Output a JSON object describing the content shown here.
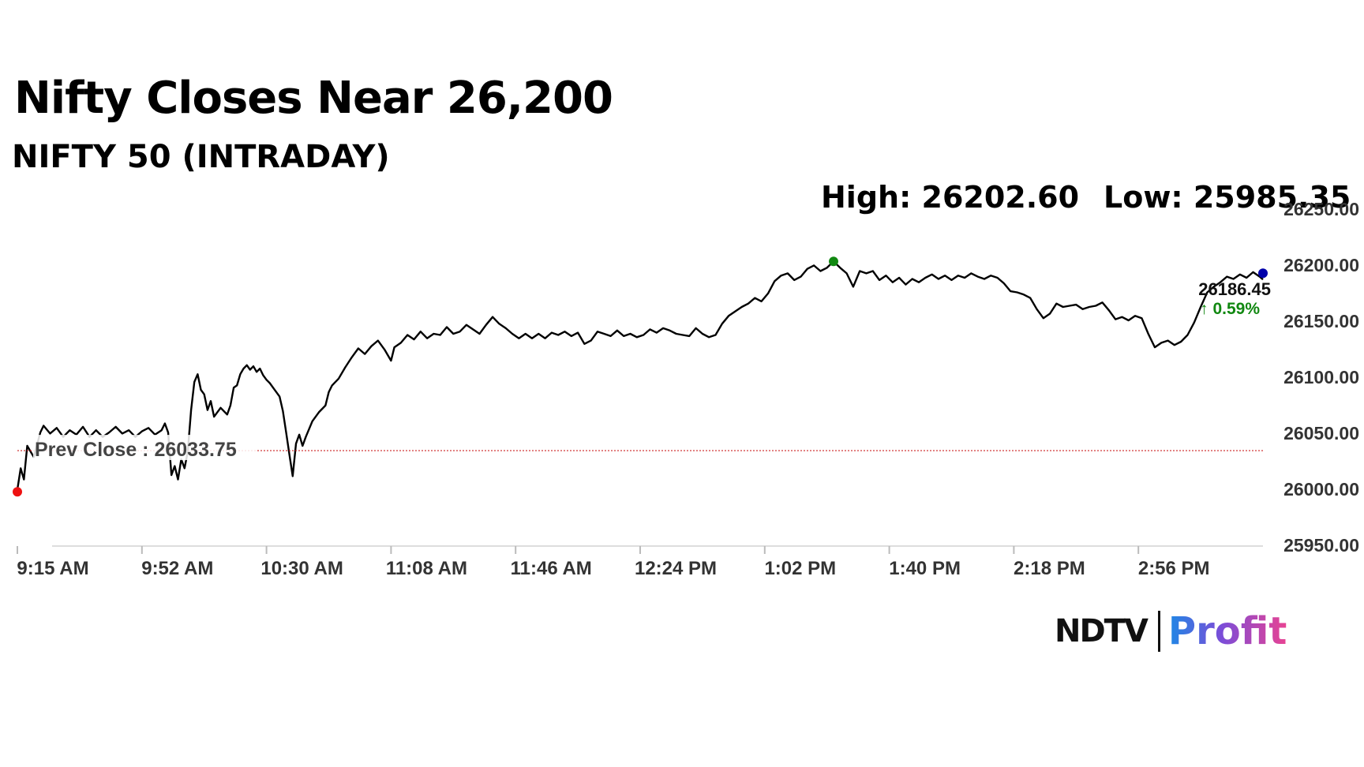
{
  "header": {
    "title": "Nifty Closes Near 26,200",
    "subtitle": "NIFTY 50 (INTRADAY)",
    "high_text": "High: 26202.60",
    "low_text": "Low: 25985.35"
  },
  "logo": {
    "brand": "NDTV",
    "product": "Profit"
  },
  "chart_data": {
    "type": "line",
    "ylim": [
      25950,
      26250
    ],
    "y_ticks": [
      "26250.00",
      "26200.00",
      "26150.00",
      "26100.00",
      "26050.00",
      "26000.00",
      "25950.00"
    ],
    "x_ticks": [
      "9:15 AM",
      "9:52 AM",
      "10:30 AM",
      "11:08 AM",
      "11:46 AM",
      "12:24 PM",
      "1:02 PM",
      "1:40 PM",
      "2:18 PM",
      "2:56 PM"
    ],
    "x_range_minutes": [
      0,
      380
    ],
    "prev_close": {
      "label": "Prev Close : 26033.75",
      "value": 26033.75,
      "color": "#cc2222"
    },
    "last": {
      "value_label": "26186.45",
      "change_label": "↑ 0.59%",
      "value": 26186.45,
      "change_color": "#118811",
      "marker_color": "#0000aa"
    },
    "open_marker": {
      "value": 25997,
      "color": "#ee1111"
    },
    "high_marker": {
      "value": 26202.6,
      "color": "#118811"
    },
    "series": [
      {
        "line_color": "#000000",
        "points": [
          [
            0,
            25999
          ],
          [
            1,
            26018
          ],
          [
            2,
            26008
          ],
          [
            3,
            26038
          ],
          [
            5,
            26028
          ],
          [
            7,
            26050
          ],
          [
            8,
            26056
          ],
          [
            10,
            26049
          ],
          [
            12,
            26054
          ],
          [
            14,
            26046
          ],
          [
            16,
            26052
          ],
          [
            18,
            26048
          ],
          [
            20,
            26055
          ],
          [
            22,
            26046
          ],
          [
            24,
            26052
          ],
          [
            26,
            26046
          ],
          [
            28,
            26050
          ],
          [
            30,
            26055
          ],
          [
            32,
            26049
          ],
          [
            34,
            26052
          ],
          [
            36,
            26046
          ],
          [
            38,
            26051
          ],
          [
            40,
            26054
          ],
          [
            42,
            26048
          ],
          [
            44,
            26052
          ],
          [
            45,
            26058
          ],
          [
            46,
            26050
          ],
          [
            47,
            26012
          ],
          [
            48,
            26020
          ],
          [
            49,
            26008
          ],
          [
            50,
            26026
          ],
          [
            51,
            26018
          ],
          [
            52,
            26033
          ],
          [
            53,
            26070
          ],
          [
            54,
            26095
          ],
          [
            55,
            26102
          ],
          [
            56,
            26088
          ],
          [
            57,
            26084
          ],
          [
            58,
            26070
          ],
          [
            59,
            26078
          ],
          [
            60,
            26064
          ],
          [
            62,
            26072
          ],
          [
            64,
            26066
          ],
          [
            65,
            26074
          ],
          [
            66,
            26090
          ],
          [
            67,
            26092
          ],
          [
            68,
            26102
          ],
          [
            69,
            26107
          ],
          [
            70,
            26110
          ],
          [
            71,
            26106
          ],
          [
            72,
            26109
          ],
          [
            73,
            26104
          ],
          [
            74,
            26107
          ],
          [
            75,
            26101
          ],
          [
            76,
            26097
          ],
          [
            77,
            26094
          ],
          [
            78,
            26090
          ],
          [
            79,
            26086
          ],
          [
            80,
            26082
          ],
          [
            81,
            26069
          ],
          [
            82,
            26050
          ],
          [
            83,
            26030
          ],
          [
            84,
            26011
          ],
          [
            85,
            26040
          ],
          [
            86,
            26048
          ],
          [
            87,
            26038
          ],
          [
            88,
            26046
          ],
          [
            90,
            26060
          ],
          [
            92,
            26068
          ],
          [
            94,
            26074
          ],
          [
            95,
            26086
          ],
          [
            96,
            26092
          ],
          [
            98,
            26098
          ],
          [
            100,
            26108
          ],
          [
            102,
            26117
          ],
          [
            104,
            26125
          ],
          [
            106,
            26120
          ],
          [
            108,
            26127
          ],
          [
            110,
            26132
          ],
          [
            112,
            26124
          ],
          [
            114,
            26114
          ],
          [
            115,
            26126
          ],
          [
            117,
            26130
          ],
          [
            119,
            26137
          ],
          [
            121,
            26133
          ],
          [
            123,
            26140
          ],
          [
            125,
            26134
          ],
          [
            127,
            26138
          ],
          [
            129,
            26137
          ],
          [
            131,
            26144
          ],
          [
            133,
            26138
          ],
          [
            135,
            26140
          ],
          [
            137,
            26146
          ],
          [
            139,
            26142
          ],
          [
            141,
            26138
          ],
          [
            143,
            26146
          ],
          [
            145,
            26153
          ],
          [
            147,
            26147
          ],
          [
            149,
            26143
          ],
          [
            151,
            26138
          ],
          [
            153,
            26134
          ],
          [
            155,
            26138
          ],
          [
            157,
            26134
          ],
          [
            159,
            26138
          ],
          [
            161,
            26134
          ],
          [
            163,
            26139
          ],
          [
            165,
            26137
          ],
          [
            167,
            26140
          ],
          [
            169,
            26136
          ],
          [
            171,
            26139
          ],
          [
            173,
            26129
          ],
          [
            175,
            26132
          ],
          [
            177,
            26140
          ],
          [
            179,
            26138
          ],
          [
            181,
            26136
          ],
          [
            183,
            26141
          ],
          [
            185,
            26136
          ],
          [
            187,
            26138
          ],
          [
            189,
            26135
          ],
          [
            191,
            26137
          ],
          [
            193,
            26142
          ],
          [
            195,
            26139
          ],
          [
            197,
            26143
          ],
          [
            199,
            26141
          ],
          [
            201,
            26138
          ],
          [
            203,
            26137
          ],
          [
            205,
            26136
          ],
          [
            207,
            26143
          ],
          [
            209,
            26138
          ],
          [
            211,
            26135
          ],
          [
            213,
            26137
          ],
          [
            215,
            26147
          ],
          [
            217,
            26154
          ],
          [
            219,
            26158
          ],
          [
            221,
            26162
          ],
          [
            223,
            26165
          ],
          [
            225,
            26170
          ],
          [
            227,
            26167
          ],
          [
            229,
            26174
          ],
          [
            231,
            26185
          ],
          [
            233,
            26190
          ],
          [
            235,
            26192
          ],
          [
            237,
            26186
          ],
          [
            239,
            26189
          ],
          [
            241,
            26196
          ],
          [
            243,
            26199
          ],
          [
            245,
            26194
          ],
          [
            247,
            26197
          ],
          [
            249,
            26202.6
          ],
          [
            251,
            26197
          ],
          [
            253,
            26192
          ],
          [
            255,
            26180
          ],
          [
            257,
            26194
          ],
          [
            259,
            26192
          ],
          [
            261,
            26194
          ],
          [
            263,
            26186
          ],
          [
            265,
            26190
          ],
          [
            267,
            26184
          ],
          [
            269,
            26188
          ],
          [
            271,
            26182
          ],
          [
            273,
            26187
          ],
          [
            275,
            26184
          ],
          [
            277,
            26188
          ],
          [
            279,
            26191
          ],
          [
            281,
            26187
          ],
          [
            283,
            26190
          ],
          [
            285,
            26186
          ],
          [
            287,
            26190
          ],
          [
            289,
            26188
          ],
          [
            291,
            26192
          ],
          [
            293,
            26189
          ],
          [
            295,
            26187
          ],
          [
            297,
            26190
          ],
          [
            299,
            26188
          ],
          [
            301,
            26183
          ],
          [
            303,
            26176
          ],
          [
            305,
            26175
          ],
          [
            307,
            26173
          ],
          [
            309,
            26170
          ],
          [
            311,
            26160
          ],
          [
            313,
            26152
          ],
          [
            315,
            26156
          ],
          [
            317,
            26165
          ],
          [
            319,
            26162
          ],
          [
            321,
            26163
          ],
          [
            323,
            26164
          ],
          [
            325,
            26160
          ],
          [
            327,
            26162
          ],
          [
            329,
            26163
          ],
          [
            331,
            26166
          ],
          [
            333,
            26159
          ],
          [
            335,
            26151
          ],
          [
            337,
            26153
          ],
          [
            339,
            26150
          ],
          [
            341,
            26154
          ],
          [
            343,
            26152
          ],
          [
            345,
            26138
          ],
          [
            347,
            26126
          ],
          [
            349,
            26130
          ],
          [
            351,
            26132
          ],
          [
            353,
            26128
          ],
          [
            355,
            26131
          ],
          [
            357,
            26137
          ],
          [
            359,
            26148
          ],
          [
            361,
            26162
          ],
          [
            363,
            26175
          ],
          [
            365,
            26180
          ],
          [
            367,
            26184
          ],
          [
            369,
            26189
          ],
          [
            371,
            26187
          ],
          [
            373,
            26191
          ],
          [
            375,
            26188
          ],
          [
            377,
            26193
          ],
          [
            379,
            26189
          ],
          [
            380,
            26186.45
          ]
        ]
      }
    ]
  }
}
